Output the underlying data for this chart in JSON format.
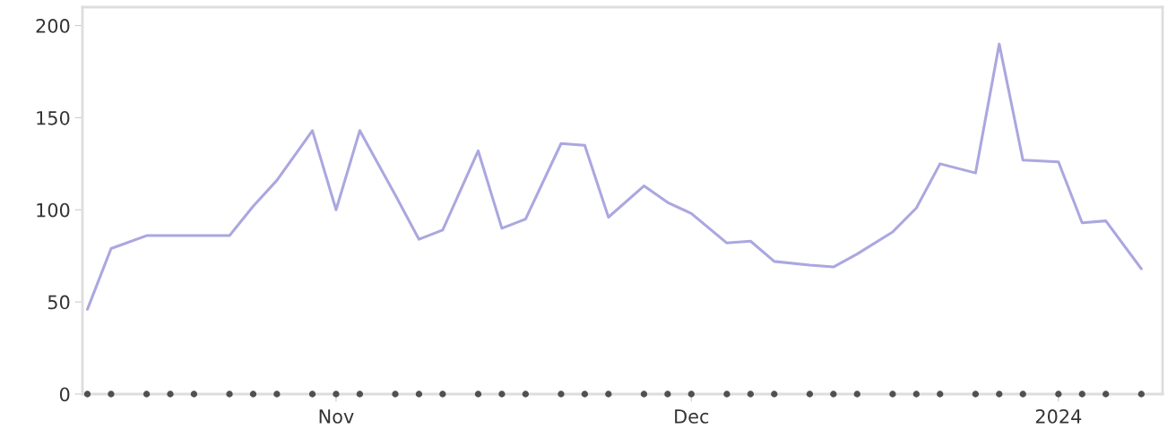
{
  "chart_data": {
    "type": "line",
    "x": [
      "2023-10-11",
      "2023-10-13",
      "2023-10-16",
      "2023-10-18",
      "2023-10-20",
      "2023-10-23",
      "2023-10-25",
      "2023-10-27",
      "2023-10-30",
      "2023-11-01",
      "2023-11-03",
      "2023-11-06",
      "2023-11-08",
      "2023-11-10",
      "2023-11-13",
      "2023-11-15",
      "2023-11-17",
      "2023-11-20",
      "2023-11-22",
      "2023-11-24",
      "2023-11-27",
      "2023-11-29",
      "2023-12-01",
      "2023-12-04",
      "2023-12-06",
      "2023-12-08",
      "2023-12-11",
      "2023-12-13",
      "2023-12-15",
      "2023-12-18",
      "2023-12-20",
      "2023-12-22",
      "2023-12-25",
      "2023-12-27",
      "2023-12-29",
      "2024-01-01",
      "2024-01-03",
      "2024-01-05",
      "2024-01-08"
    ],
    "series": [
      {
        "color": "#aba7e0",
        "values": [
          46,
          79,
          86,
          86,
          86,
          86,
          102,
          116,
          143,
          100,
          143,
          108,
          84,
          89,
          132,
          90,
          95,
          136,
          135,
          96,
          113,
          104,
          98,
          82,
          83,
          72,
          70,
          69,
          76,
          88,
          101,
          125,
          120,
          190,
          127,
          126,
          93,
          94,
          68
        ]
      },
      {
        "type": "scatter",
        "color": "#505050",
        "values": [
          0,
          0,
          0,
          0,
          0,
          0,
          0,
          0,
          0,
          0,
          0,
          0,
          0,
          0,
          0,
          0,
          0,
          0,
          0,
          0,
          0,
          0,
          0,
          0,
          0,
          0,
          0,
          0,
          0,
          0,
          0,
          0,
          0,
          0,
          0,
          0,
          0,
          0,
          0
        ]
      }
    ],
    "xlim": [
      "2023-10-10T14:00",
      "2024-01-09T19:00"
    ],
    "xticks": [
      {
        "value": "2023-11-01",
        "label": "Nov"
      },
      {
        "value": "2023-12-01",
        "label": "Dec"
      },
      {
        "value": "2024-01-01",
        "label": "2024"
      }
    ],
    "ylim": [
      0,
      210
    ],
    "yticks": [
      0,
      50,
      100,
      150,
      200
    ],
    "grid": false
  }
}
